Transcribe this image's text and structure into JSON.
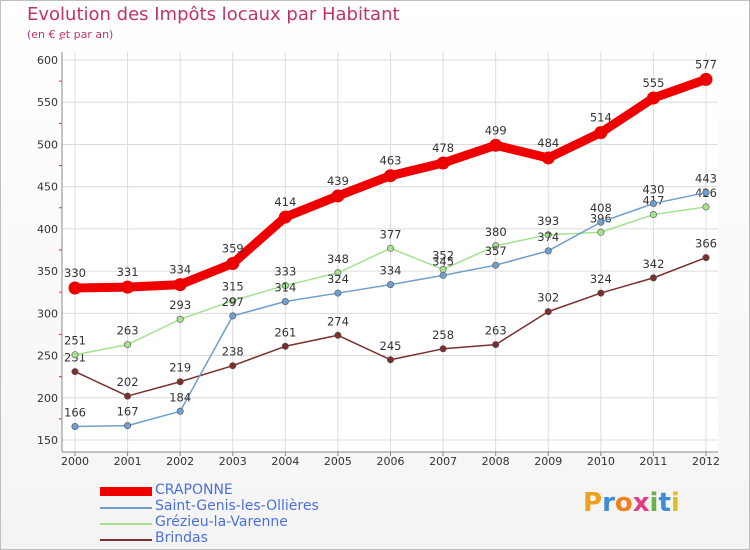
{
  "title": "Evolution des Impôts locaux par Habitant",
  "subtitle": "(en € et par an)",
  "logo": {
    "letters": [
      "P",
      "r",
      "o",
      "x",
      "i",
      "t",
      "i"
    ],
    "colors": [
      "#f0a020",
      "#3a8ed8",
      "#f08020",
      "#e04080",
      "#6ab04c",
      "#3a8ed8",
      "#e0c020"
    ]
  },
  "chart_data": {
    "type": "line",
    "title": "Evolution des Impôts locaux par Habitant",
    "ylabel": "(en € et par an)",
    "xlabel": "",
    "x": [
      "2000",
      "2001",
      "2002",
      "2003",
      "2004",
      "2005",
      "2006",
      "2007",
      "2008",
      "2009",
      "2010",
      "2011",
      "2012"
    ],
    "yticks": [
      150,
      200,
      250,
      300,
      350,
      400,
      450,
      500,
      550,
      600
    ],
    "ylim": [
      150,
      600
    ],
    "grid": true,
    "legend_position": "bottom-left",
    "series": [
      {
        "name": "CRAPONNE",
        "color": "#ee0000",
        "values": [
          330,
          331,
          334,
          359,
          414,
          439,
          463,
          478,
          499,
          484,
          514,
          555,
          577
        ]
      },
      {
        "name": "Saint-Genis-les-Ollières",
        "color": "#6f9fcf",
        "values": [
          166,
          167,
          184,
          297,
          314,
          324,
          334,
          345,
          357,
          374,
          408,
          430,
          443
        ]
      },
      {
        "name": "Grézieu-la-Varenne",
        "color": "#a6e090",
        "values": [
          251,
          263,
          293,
          315,
          333,
          348,
          377,
          352,
          380,
          393,
          396,
          417,
          426
        ]
      },
      {
        "name": "Brindas",
        "color": "#7a2e2e",
        "values": [
          231,
          202,
          219,
          238,
          261,
          274,
          245,
          258,
          263,
          302,
          324,
          342,
          366
        ]
      }
    ]
  }
}
